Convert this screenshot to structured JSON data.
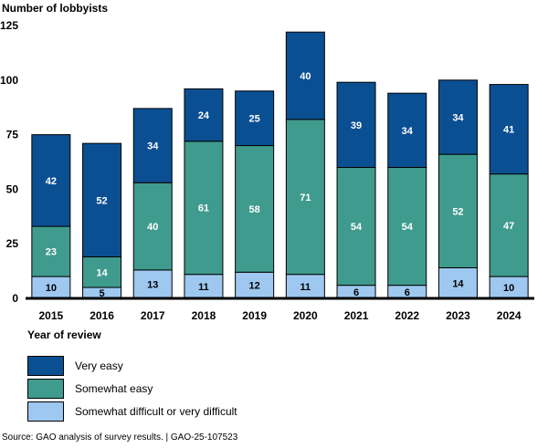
{
  "chart_data": {
    "type": "bar",
    "stacked": true,
    "ylabel": "Number of lobbyists",
    "xlabel": "Year of review",
    "ylim": [
      0,
      125
    ],
    "yticks": [
      0,
      25,
      50,
      75,
      100,
      125
    ],
    "grid": false,
    "categories": [
      "2015",
      "2016",
      "2017",
      "2018",
      "2019",
      "2020",
      "2021",
      "2022",
      "2023",
      "2024"
    ],
    "series": [
      {
        "name": "Somewhat difficult or very difficult",
        "color": "#9ec8ef",
        "values": [
          10,
          5,
          13,
          11,
          12,
          11,
          6,
          6,
          14,
          10
        ]
      },
      {
        "name": "Somewhat easy",
        "color": "#3f9b8e",
        "values": [
          23,
          14,
          40,
          61,
          58,
          71,
          54,
          54,
          52,
          47
        ]
      },
      {
        "name": "Very easy",
        "color": "#0b4f93",
        "values": [
          42,
          52,
          34,
          24,
          25,
          40,
          39,
          34,
          34,
          41
        ]
      }
    ]
  },
  "legend": [
    {
      "label": "Very easy",
      "color": "#0b4f93"
    },
    {
      "label": "Somewhat easy",
      "color": "#3f9b8e"
    },
    {
      "label": "Somewhat difficult or very difficult",
      "color": "#9ec8ef"
    }
  ],
  "source": "Source: GAO analysis of survey results.  |  GAO-25-107523"
}
